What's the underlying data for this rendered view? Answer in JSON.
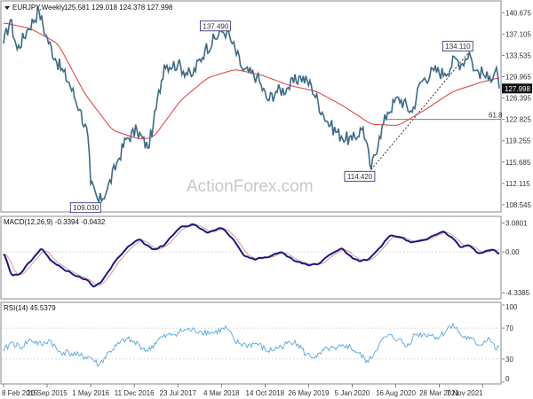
{
  "header": {
    "symbol": "EURJPY,Weekly",
    "ohlc": "125.581 129.018 124.378 127.998"
  },
  "watermark": "ActionForex.com",
  "colors": {
    "price": "#3d6b86",
    "sma": "#e03a3a",
    "macd": "#1a1a80",
    "signal": "#d98c8c",
    "rsi": "#55a8dd",
    "box_border": "#3a3a8a",
    "current_box": "#111111",
    "grid": "#cfcfcf"
  },
  "chart_data": {
    "type": "line",
    "x_ticks": [
      "8 Feb 2015",
      "20 Sep 2015",
      "1 May 2016",
      "11 Dec 2016",
      "23 Jul 2017",
      "4 Mar 2018",
      "14 Oct 2018",
      "26 May 2019",
      "5 Jan 2020",
      "16 Aug 2020",
      "28 Mar 2021",
      "7 Nov 2021"
    ],
    "x_tick_index": [
      0,
      32,
      64,
      96,
      128,
      160,
      192,
      224,
      256,
      288,
      320,
      352
    ],
    "bar_count": 365,
    "price_panel": {
      "ylim": [
        107.5,
        142.5
      ],
      "y_ticks": [
        "140.675",
        "137.105",
        "133.535",
        "129.965",
        "126.395",
        "122.825",
        "119.255",
        "115.685",
        "112.115",
        "108.545"
      ],
      "current_price": "127.998",
      "fib_level": {
        "label": "61.8",
        "value": 122.825,
        "from_index": 282
      },
      "annotations": [
        {
          "label": "137.490",
          "index": 164,
          "value": 137.49
        },
        {
          "label": "109.030",
          "index": 70,
          "value": 109.03
        },
        {
          "label": "114.420",
          "index": 270,
          "value": 114.42
        },
        {
          "label": "134.110",
          "index": 342,
          "value": 134.11
        }
      ],
      "trend_line": {
        "from_index": 270,
        "from_value": 114.42,
        "to_index": 342,
        "to_value": 134.11
      },
      "anchors": [
        [
          0,
          135.5
        ],
        [
          5,
          139.5
        ],
        [
          10,
          134.5
        ],
        [
          18,
          138
        ],
        [
          26,
          141
        ],
        [
          31,
          137
        ],
        [
          38,
          133
        ],
        [
          48,
          129
        ],
        [
          56,
          124.5
        ],
        [
          62,
          120
        ],
        [
          64,
          112
        ],
        [
          70,
          109.03
        ],
        [
          76,
          111
        ],
        [
          84,
          116
        ],
        [
          90,
          119.5
        ],
        [
          98,
          121
        ],
        [
          106,
          118
        ],
        [
          110,
          122
        ],
        [
          118,
          132
        ],
        [
          128,
          132
        ],
        [
          138,
          130
        ],
        [
          148,
          134.5
        ],
        [
          160,
          137.5
        ],
        [
          164,
          137.49
        ],
        [
          168,
          135.5
        ],
        [
          176,
          131
        ],
        [
          186,
          130
        ],
        [
          194,
          126
        ],
        [
          200,
          127.5
        ],
        [
          208,
          128
        ],
        [
          218,
          130
        ],
        [
          226,
          128.5
        ],
        [
          234,
          124
        ],
        [
          240,
          121.8
        ],
        [
          248,
          120
        ],
        [
          256,
          119.3
        ],
        [
          264,
          121.5
        ],
        [
          270,
          114.42
        ],
        [
          276,
          120
        ],
        [
          282,
          124
        ],
        [
          290,
          126.5
        ],
        [
          300,
          124
        ],
        [
          306,
          129
        ],
        [
          316,
          131
        ],
        [
          324,
          130.5
        ],
        [
          332,
          133
        ],
        [
          336,
          132
        ],
        [
          342,
          134.11
        ],
        [
          346,
          131
        ],
        [
          352,
          130.5
        ],
        [
          356,
          129.5
        ],
        [
          362,
          131.5
        ],
        [
          364,
          127.998
        ]
      ],
      "sma_anchors": [
        [
          0,
          139
        ],
        [
          20,
          138
        ],
        [
          40,
          135.5
        ],
        [
          60,
          127
        ],
        [
          80,
          121
        ],
        [
          100,
          119.5
        ],
        [
          110,
          119.8
        ],
        [
          130,
          126
        ],
        [
          150,
          129.8
        ],
        [
          170,
          131.2
        ],
        [
          190,
          130.2
        ],
        [
          210,
          128.5
        ],
        [
          230,
          127.5
        ],
        [
          250,
          125
        ],
        [
          270,
          122
        ],
        [
          290,
          121.8
        ],
        [
          310,
          124.5
        ],
        [
          330,
          127.5
        ],
        [
          350,
          129
        ],
        [
          364,
          129.8
        ]
      ]
    },
    "macd_panel": {
      "label": "MACD(12,26,9) -0.3394 -0.0432",
      "ylim": [
        -4.8,
        3.6
      ],
      "y_ticks": [
        "3.0801",
        "0.00",
        "-4.3385"
      ],
      "anchors": [
        [
          0,
          0
        ],
        [
          6,
          -2.6
        ],
        [
          12,
          -2.3
        ],
        [
          22,
          -0.6
        ],
        [
          28,
          0.4
        ],
        [
          34,
          -0.8
        ],
        [
          44,
          -1.8
        ],
        [
          54,
          -2.6
        ],
        [
          62,
          -3.0
        ],
        [
          66,
          -3.7
        ],
        [
          72,
          -3.2
        ],
        [
          82,
          -1.0
        ],
        [
          92,
          0.6
        ],
        [
          100,
          1.4
        ],
        [
          104,
          0.8
        ],
        [
          110,
          0.2
        ],
        [
          118,
          0.7
        ],
        [
          130,
          2.7
        ],
        [
          140,
          2.9
        ],
        [
          150,
          2.0
        ],
        [
          160,
          2.6
        ],
        [
          168,
          1.5
        ],
        [
          176,
          -0.3
        ],
        [
          184,
          -0.8
        ],
        [
          196,
          -0.5
        ],
        [
          204,
          0
        ],
        [
          214,
          -1.0
        ],
        [
          224,
          -1.4
        ],
        [
          232,
          -1.2
        ],
        [
          240,
          -0.2
        ],
        [
          248,
          0.4
        ],
        [
          256,
          -0.6
        ],
        [
          262,
          -1.0
        ],
        [
          268,
          -0.8
        ],
        [
          276,
          0.4
        ],
        [
          284,
          1.8
        ],
        [
          292,
          1.5
        ],
        [
          300,
          1.0
        ],
        [
          312,
          1.4
        ],
        [
          322,
          2.2
        ],
        [
          330,
          1.5
        ],
        [
          336,
          0.4
        ],
        [
          342,
          0.8
        ],
        [
          348,
          -0.2
        ],
        [
          354,
          0.1
        ],
        [
          360,
          0.3
        ],
        [
          364,
          -0.34
        ]
      ]
    },
    "rsi_panel": {
      "label": "RSI(14) 45.5379",
      "ylim": [
        0,
        100
      ],
      "y_ticks": [
        "100",
        "70",
        "30",
        "0"
      ],
      "levels": [
        70,
        30
      ],
      "anchors": [
        [
          0,
          40
        ],
        [
          6,
          52
        ],
        [
          12,
          45
        ],
        [
          20,
          55
        ],
        [
          28,
          48
        ],
        [
          34,
          55
        ],
        [
          40,
          40
        ],
        [
          48,
          38
        ],
        [
          56,
          34
        ],
        [
          64,
          32
        ],
        [
          70,
          22
        ],
        [
          78,
          40
        ],
        [
          90,
          56
        ],
        [
          100,
          48
        ],
        [
          106,
          40
        ],
        [
          114,
          56
        ],
        [
          124,
          62
        ],
        [
          134,
          68
        ],
        [
          144,
          66
        ],
        [
          154,
          64
        ],
        [
          164,
          70
        ],
        [
          170,
          52
        ],
        [
          178,
          48
        ],
        [
          186,
          50
        ],
        [
          194,
          40
        ],
        [
          204,
          46
        ],
        [
          214,
          54
        ],
        [
          222,
          36
        ],
        [
          230,
          32
        ],
        [
          238,
          44
        ],
        [
          244,
          42
        ],
        [
          252,
          48
        ],
        [
          260,
          38
        ],
        [
          268,
          26
        ],
        [
          276,
          50
        ],
        [
          282,
          60
        ],
        [
          290,
          56
        ],
        [
          296,
          46
        ],
        [
          302,
          62
        ],
        [
          312,
          62
        ],
        [
          320,
          58
        ],
        [
          330,
          76
        ],
        [
          336,
          60
        ],
        [
          342,
          56
        ],
        [
          350,
          48
        ],
        [
          356,
          58
        ],
        [
          362,
          42
        ],
        [
          364,
          45.54
        ]
      ]
    }
  }
}
